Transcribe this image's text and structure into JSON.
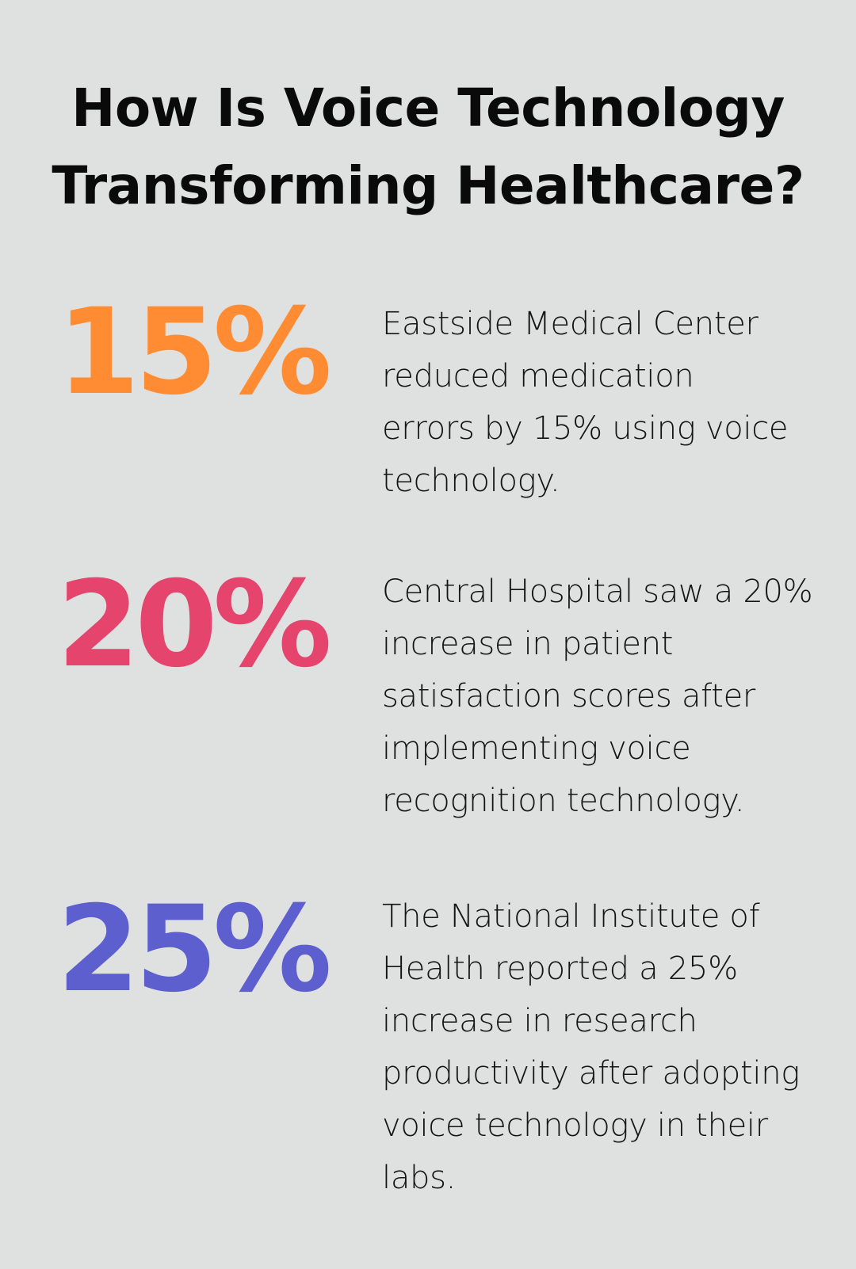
{
  "title": {
    "line1": "How Is Voice Technology",
    "line2": "Transforming Healthcare?"
  },
  "stats": [
    {
      "value": "15%",
      "color": "#ff8c33",
      "description": "Eastside Medical Center reduced medication errors by 15% using voice technology."
    },
    {
      "value": "20%",
      "color": "#e5446d",
      "description": "Central Hospital saw a 20% increase in patient satisfaction scores after implementing voice recognition technology."
    },
    {
      "value": "25%",
      "color": "#5d5fcf",
      "description": "The National Institute of Health reported a 25% increase in research productivity after adopting voice technology in their labs."
    }
  ]
}
